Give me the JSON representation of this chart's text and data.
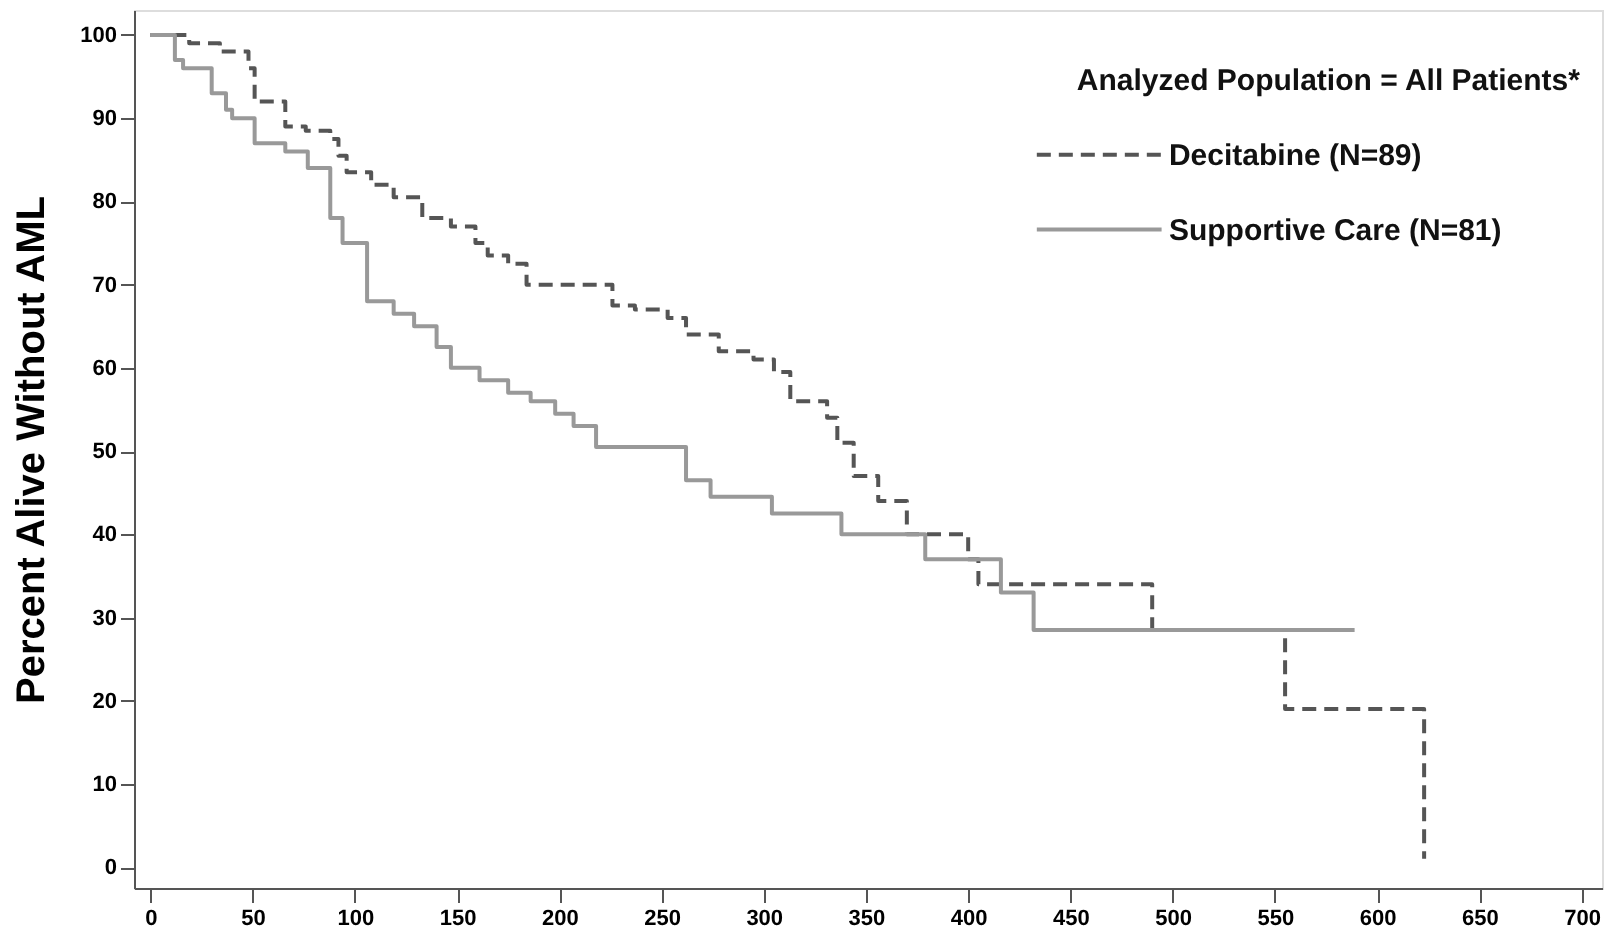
{
  "chart_data": {
    "type": "step",
    "ylabel": "Percent Alive Without AML",
    "legend_title": "Analyzed Population = All Patients*",
    "legend": "top right",
    "grid": false,
    "marker": "none",
    "xlim": [
      -8,
      710
    ],
    "ylim": [
      -2.5,
      103
    ],
    "xticks": [
      0,
      50,
      100,
      150,
      200,
      250,
      300,
      350,
      400,
      450,
      500,
      550,
      600,
      650,
      700
    ],
    "yticks": [
      0,
      10,
      20,
      30,
      40,
      50,
      60,
      70,
      80,
      90,
      100
    ],
    "series": [
      {
        "name": "Decitabine (N=89)",
        "color": "#555555",
        "line_style": "dashed",
        "x": [
          0,
          19,
          34,
          48,
          51,
          66,
          76,
          88,
          92,
          96,
          108,
          119,
          133,
          147,
          159,
          165,
          175,
          184,
          226,
          237,
          253,
          262,
          278,
          295,
          305,
          313,
          331,
          336,
          344,
          356,
          370,
          400,
          405,
          490,
          555,
          623
        ],
        "values": [
          100,
          99,
          98,
          96,
          92,
          89,
          88.5,
          87.5,
          85.5,
          83.5,
          82,
          80.5,
          78,
          77,
          75,
          73.5,
          72.5,
          70,
          67.5,
          67,
          66,
          64,
          62,
          61,
          59.5,
          56,
          54,
          51,
          47,
          44,
          40,
          37,
          34,
          28.5,
          19,
          1
        ]
      },
      {
        "name": "Supportive Care (N=81)",
        "color": "#999999",
        "line_style": "solid",
        "x": [
          0,
          12,
          16,
          30,
          37,
          40,
          51,
          66,
          77,
          88,
          94,
          106,
          119,
          129,
          140,
          147,
          161,
          175,
          186,
          198,
          207,
          218,
          262,
          274,
          304,
          338,
          379,
          416,
          432,
          589
        ],
        "values": [
          100,
          97,
          96,
          93,
          91,
          90,
          87,
          86,
          84,
          78,
          75,
          68,
          66.5,
          65,
          62.5,
          60,
          58.5,
          57,
          56,
          54.5,
          53,
          50.5,
          46.5,
          44.5,
          42.5,
          40,
          37,
          33,
          28.5,
          28.5
        ]
      }
    ]
  }
}
